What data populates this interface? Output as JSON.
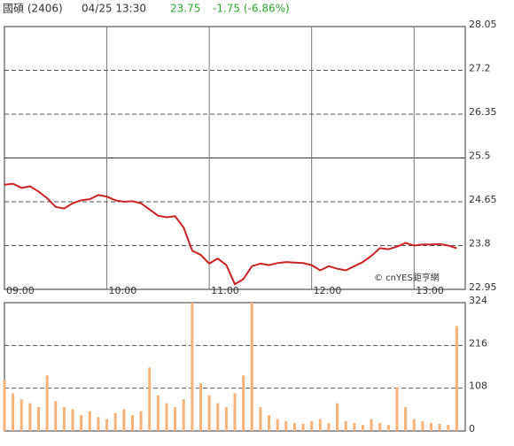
{
  "header": {
    "name": "國碩 (2406)",
    "time": "04/25 13:30",
    "price": "23.75",
    "change": "-1.75 (-6.86%)"
  },
  "watermark": "© cnYES鉅亨網",
  "chart_data": [
    {
      "type": "line",
      "color": "#cc2222",
      "x": [
        0,
        5,
        10,
        15,
        20,
        25,
        30,
        35,
        40,
        45,
        50,
        55,
        60,
        65,
        70,
        75,
        80,
        85,
        90,
        95,
        100,
        105,
        110,
        115,
        120,
        125,
        130,
        135,
        140,
        145,
        150,
        155,
        160,
        165,
        170,
        175,
        180,
        185,
        190,
        195,
        200,
        205,
        210,
        215,
        220,
        225,
        230,
        235,
        240,
        245,
        250,
        255,
        260,
        265
      ],
      "values": [
        24.98,
        25.0,
        24.92,
        24.95,
        24.85,
        24.72,
        24.55,
        24.52,
        24.62,
        24.68,
        24.7,
        24.78,
        24.75,
        24.68,
        24.65,
        24.66,
        24.62,
        24.5,
        24.38,
        24.35,
        24.37,
        24.15,
        23.7,
        23.62,
        23.45,
        23.55,
        23.42,
        23.05,
        23.15,
        23.4,
        23.45,
        23.42,
        23.46,
        23.48,
        23.47,
        23.46,
        23.42,
        23.32,
        23.4,
        23.35,
        23.32,
        23.4,
        23.48,
        23.6,
        23.75,
        23.73,
        23.78,
        23.85,
        23.8,
        23.82,
        23.82,
        23.83,
        23.8,
        23.75
      ],
      "xlim": [
        0,
        270
      ],
      "xticks": [
        {
          "value": 0,
          "label": "09:00"
        },
        {
          "value": 60,
          "label": "10:00"
        },
        {
          "value": 120,
          "label": "11:00"
        },
        {
          "value": 180,
          "label": "12:00"
        },
        {
          "value": 240,
          "label": "13:00"
        }
      ],
      "ylim": [
        22.95,
        28.05
      ],
      "yticks": [
        22.95,
        23.8,
        24.65,
        25.5,
        26.35,
        27.2,
        28.05
      ],
      "reference": 25.5
    },
    {
      "type": "bar",
      "color": "#f5b27a",
      "x": [
        0,
        5,
        10,
        15,
        20,
        25,
        30,
        35,
        40,
        45,
        50,
        55,
        60,
        65,
        70,
        75,
        80,
        85,
        90,
        95,
        100,
        105,
        110,
        115,
        120,
        125,
        130,
        135,
        140,
        145,
        150,
        155,
        160,
        165,
        170,
        175,
        180,
        185,
        190,
        195,
        200,
        205,
        210,
        215,
        220,
        225,
        230,
        235,
        240,
        245,
        250,
        255,
        260,
        265
      ],
      "values": [
        130,
        95,
        80,
        70,
        60,
        140,
        75,
        60,
        55,
        40,
        50,
        35,
        30,
        45,
        55,
        40,
        50,
        160,
        90,
        70,
        60,
        80,
        324,
        120,
        90,
        70,
        60,
        95,
        140,
        324,
        60,
        40,
        30,
        25,
        20,
        18,
        25,
        30,
        20,
        70,
        25,
        20,
        15,
        30,
        20,
        15,
        110,
        60,
        30,
        25,
        20,
        18,
        15,
        265
      ],
      "xlim": [
        0,
        270
      ],
      "ylim": [
        0,
        324
      ],
      "yticks": [
        0,
        108,
        216,
        324
      ]
    }
  ]
}
